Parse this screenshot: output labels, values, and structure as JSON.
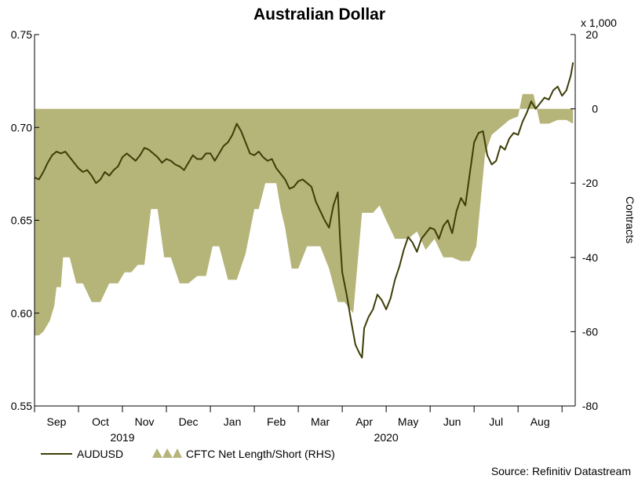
{
  "source_text": "Source: Refinitiv Datastream",
  "chart_data": {
    "type": "line",
    "title": "Australian Dollar",
    "left_axis": {
      "range": [
        0.55,
        0.75
      ],
      "ticks": [
        "0.55",
        "0.60",
        "0.65",
        "0.70",
        "0.75"
      ]
    },
    "right_axis": {
      "range": [
        -80,
        20
      ],
      "ticks": [
        "-80",
        "-60",
        "-40",
        "-20",
        "0",
        "20"
      ],
      "unit_label": "x 1,000",
      "label": "Contracts"
    },
    "x_months": [
      "Sep",
      "Oct",
      "Nov",
      "Dec",
      "Jan",
      "Feb",
      "Mar",
      "Apr",
      "May",
      "Jun",
      "Jul",
      "Aug"
    ],
    "years": [
      {
        "label": "2019",
        "under_month_index": 1.5
      },
      {
        "label": "2020",
        "under_month_index": 7.5
      }
    ],
    "x_range_months": [
      -0.5,
      11.8
    ],
    "colors": {
      "line": "#3d3d08",
      "area": "#b5b479"
    },
    "series": [
      {
        "name": "AUDUSD",
        "axis": "left",
        "kind": "line",
        "points": [
          [
            -0.5,
            0.673
          ],
          [
            -0.4,
            0.672
          ],
          [
            -0.3,
            0.676
          ],
          [
            -0.2,
            0.681
          ],
          [
            -0.1,
            0.685
          ],
          [
            0,
            0.687
          ],
          [
            0.1,
            0.686
          ],
          [
            0.2,
            0.687
          ],
          [
            0.3,
            0.684
          ],
          [
            0.4,
            0.681
          ],
          [
            0.5,
            0.678
          ],
          [
            0.6,
            0.676
          ],
          [
            0.7,
            0.677
          ],
          [
            0.8,
            0.674
          ],
          [
            0.9,
            0.67
          ],
          [
            1,
            0.672
          ],
          [
            1.1,
            0.676
          ],
          [
            1.2,
            0.674
          ],
          [
            1.3,
            0.677
          ],
          [
            1.4,
            0.679
          ],
          [
            1.5,
            0.684
          ],
          [
            1.6,
            0.686
          ],
          [
            1.7,
            0.684
          ],
          [
            1.8,
            0.682
          ],
          [
            1.9,
            0.685
          ],
          [
            2,
            0.689
          ],
          [
            2.1,
            0.688
          ],
          [
            2.2,
            0.686
          ],
          [
            2.3,
            0.684
          ],
          [
            2.4,
            0.681
          ],
          [
            2.5,
            0.683
          ],
          [
            2.6,
            0.682
          ],
          [
            2.7,
            0.68
          ],
          [
            2.8,
            0.679
          ],
          [
            2.9,
            0.677
          ],
          [
            3,
            0.681
          ],
          [
            3.1,
            0.685
          ],
          [
            3.2,
            0.683
          ],
          [
            3.3,
            0.683
          ],
          [
            3.4,
            0.686
          ],
          [
            3.5,
            0.686
          ],
          [
            3.6,
            0.682
          ],
          [
            3.7,
            0.686
          ],
          [
            3.8,
            0.69
          ],
          [
            3.9,
            0.692
          ],
          [
            4,
            0.696
          ],
          [
            4.1,
            0.702
          ],
          [
            4.2,
            0.698
          ],
          [
            4.3,
            0.692
          ],
          [
            4.4,
            0.686
          ],
          [
            4.5,
            0.685
          ],
          [
            4.6,
            0.687
          ],
          [
            4.7,
            0.684
          ],
          [
            4.8,
            0.682
          ],
          [
            4.9,
            0.683
          ],
          [
            5,
            0.678
          ],
          [
            5.1,
            0.675
          ],
          [
            5.2,
            0.672
          ],
          [
            5.3,
            0.667
          ],
          [
            5.4,
            0.668
          ],
          [
            5.5,
            0.671
          ],
          [
            5.6,
            0.672
          ],
          [
            5.7,
            0.67
          ],
          [
            5.8,
            0.668
          ],
          [
            5.9,
            0.66
          ],
          [
            6,
            0.655
          ],
          [
            6.1,
            0.65
          ],
          [
            6.2,
            0.646
          ],
          [
            6.3,
            0.658
          ],
          [
            6.4,
            0.665
          ],
          [
            6.45,
            0.64
          ],
          [
            6.5,
            0.622
          ],
          [
            6.6,
            0.61
          ],
          [
            6.7,
            0.596
          ],
          [
            6.8,
            0.583
          ],
          [
            6.9,
            0.578
          ],
          [
            6.95,
            0.576
          ],
          [
            7,
            0.592
          ],
          [
            7.1,
            0.598
          ],
          [
            7.2,
            0.602
          ],
          [
            7.3,
            0.61
          ],
          [
            7.4,
            0.607
          ],
          [
            7.5,
            0.602
          ],
          [
            7.6,
            0.608
          ],
          [
            7.7,
            0.618
          ],
          [
            7.8,
            0.625
          ],
          [
            7.9,
            0.634
          ],
          [
            8,
            0.641
          ],
          [
            8.1,
            0.638
          ],
          [
            8.2,
            0.633
          ],
          [
            8.3,
            0.64
          ],
          [
            8.4,
            0.643
          ],
          [
            8.5,
            0.646
          ],
          [
            8.6,
            0.645
          ],
          [
            8.7,
            0.64
          ],
          [
            8.8,
            0.647
          ],
          [
            8.9,
            0.65
          ],
          [
            9,
            0.643
          ],
          [
            9.1,
            0.655
          ],
          [
            9.2,
            0.662
          ],
          [
            9.3,
            0.658
          ],
          [
            9.4,
            0.675
          ],
          [
            9.5,
            0.692
          ],
          [
            9.6,
            0.697
          ],
          [
            9.7,
            0.698
          ],
          [
            9.8,
            0.685
          ],
          [
            9.9,
            0.68
          ],
          [
            10,
            0.682
          ],
          [
            10.1,
            0.69
          ],
          [
            10.2,
            0.688
          ],
          [
            10.3,
            0.694
          ],
          [
            10.4,
            0.697
          ],
          [
            10.5,
            0.696
          ],
          [
            10.6,
            0.703
          ],
          [
            10.7,
            0.708
          ],
          [
            10.8,
            0.714
          ],
          [
            10.9,
            0.71
          ],
          [
            11,
            0.713
          ],
          [
            11.1,
            0.716
          ],
          [
            11.2,
            0.715
          ],
          [
            11.3,
            0.72
          ],
          [
            11.4,
            0.722
          ],
          [
            11.5,
            0.717
          ],
          [
            11.6,
            0.72
          ],
          [
            11.7,
            0.728
          ],
          [
            11.75,
            0.735
          ]
        ]
      },
      {
        "name": "CFTC Net Length/Short (RHS)",
        "axis": "right",
        "kind": "step-area",
        "points": [
          [
            -0.5,
            -61
          ],
          [
            -0.4,
            -61
          ],
          [
            -0.3,
            -60
          ],
          [
            -0.15,
            -57
          ],
          [
            -0.05,
            -53
          ],
          [
            0,
            -48
          ],
          [
            0.1,
            -48
          ],
          [
            0.15,
            -40
          ],
          [
            0.3,
            -40
          ],
          [
            0.45,
            -47
          ],
          [
            0.6,
            -47
          ],
          [
            0.8,
            -52
          ],
          [
            1,
            -52
          ],
          [
            1.2,
            -47
          ],
          [
            1.4,
            -47
          ],
          [
            1.55,
            -44
          ],
          [
            1.7,
            -44
          ],
          [
            1.85,
            -42
          ],
          [
            2,
            -42
          ],
          [
            2.15,
            -27
          ],
          [
            2.3,
            -27
          ],
          [
            2.45,
            -40
          ],
          [
            2.6,
            -40
          ],
          [
            2.8,
            -47
          ],
          [
            3,
            -47
          ],
          [
            3.2,
            -45
          ],
          [
            3.4,
            -45
          ],
          [
            3.55,
            -37
          ],
          [
            3.7,
            -37
          ],
          [
            3.9,
            -46
          ],
          [
            4.1,
            -46
          ],
          [
            4.3,
            -39
          ],
          [
            4.5,
            -27
          ],
          [
            4.6,
            -27
          ],
          [
            4.75,
            -20
          ],
          [
            5,
            -20
          ],
          [
            5.1,
            -27
          ],
          [
            5.2,
            -32
          ],
          [
            5.35,
            -43
          ],
          [
            5.5,
            -43
          ],
          [
            5.7,
            -37
          ],
          [
            6,
            -37
          ],
          [
            6.2,
            -43
          ],
          [
            6.4,
            -52
          ],
          [
            6.55,
            -52
          ],
          [
            6.75,
            -55
          ],
          [
            6.95,
            -28
          ],
          [
            7.2,
            -28
          ],
          [
            7.35,
            -26
          ],
          [
            7.5,
            -30
          ],
          [
            7.7,
            -35
          ],
          [
            8,
            -35
          ],
          [
            8.2,
            -33
          ],
          [
            8.4,
            -38
          ],
          [
            8.6,
            -35
          ],
          [
            8.8,
            -40
          ],
          [
            9,
            -40
          ],
          [
            9.2,
            -41
          ],
          [
            9.4,
            -41
          ],
          [
            9.55,
            -37
          ],
          [
            9.75,
            -12
          ],
          [
            9.9,
            -7
          ],
          [
            10,
            -6
          ],
          [
            10.1,
            -5
          ],
          [
            10.3,
            -3
          ],
          [
            10.5,
            -2
          ],
          [
            10.6,
            4
          ],
          [
            10.85,
            4
          ],
          [
            11,
            -4
          ],
          [
            11.2,
            -4
          ],
          [
            11.4,
            -3
          ],
          [
            11.6,
            -3
          ],
          [
            11.75,
            -4
          ]
        ]
      }
    ],
    "legend": {
      "placement": "bottom-left"
    }
  }
}
